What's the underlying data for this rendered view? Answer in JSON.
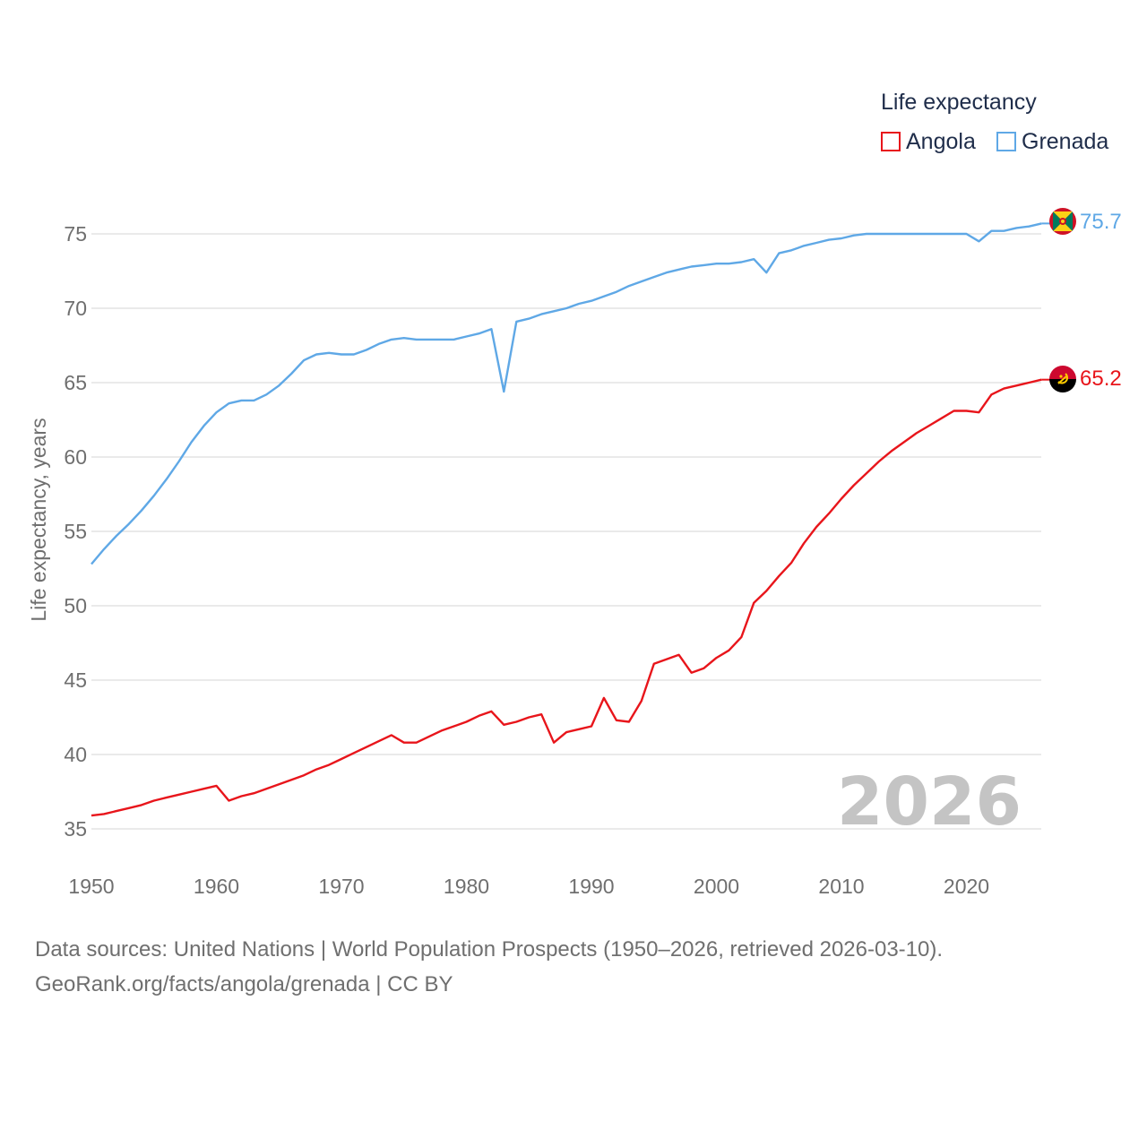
{
  "legend": {
    "title": "Life expectancy",
    "items": [
      {
        "label": "Angola",
        "color": "#e8151b"
      },
      {
        "label": "Grenada",
        "color": "#5fa8e6"
      }
    ]
  },
  "footer": {
    "line1": "Data sources: United Nations | World Population Prospects (1950–2026, retrieved 2026-03-10).",
    "line2": "GeoRank.org/facts/angola/grenada | CC BY"
  },
  "chart_data": {
    "type": "line",
    "title": "Life expectancy",
    "xlabel": "",
    "ylabel": "Life expectancy, years",
    "xlim": [
      1950,
      2026
    ],
    "ylim": [
      33,
      78
    ],
    "xticks": [
      "1950",
      "1960",
      "1970",
      "1980",
      "1990",
      "2000",
      "2010",
      "2020"
    ],
    "yticks": [
      "35",
      "40",
      "45",
      "50",
      "55",
      "60",
      "65",
      "70",
      "75"
    ],
    "year_label": "2026",
    "x": [
      1950,
      1951,
      1952,
      1953,
      1954,
      1955,
      1956,
      1957,
      1958,
      1959,
      1960,
      1961,
      1962,
      1963,
      1964,
      1965,
      1966,
      1967,
      1968,
      1969,
      1970,
      1971,
      1972,
      1973,
      1974,
      1975,
      1976,
      1977,
      1978,
      1979,
      1980,
      1981,
      1982,
      1983,
      1984,
      1985,
      1986,
      1987,
      1988,
      1989,
      1990,
      1991,
      1992,
      1993,
      1994,
      1995,
      1996,
      1997,
      1998,
      1999,
      2000,
      2001,
      2002,
      2003,
      2004,
      2005,
      2006,
      2007,
      2008,
      2009,
      2010,
      2011,
      2012,
      2013,
      2014,
      2015,
      2016,
      2017,
      2018,
      2019,
      2020,
      2021,
      2022,
      2023,
      2024,
      2025,
      2026
    ],
    "series": [
      {
        "name": "Angola",
        "color": "#e8151b",
        "end_label": "65.2",
        "flag": "angola-flag",
        "values": [
          35.9,
          36.0,
          36.2,
          36.4,
          36.6,
          36.9,
          37.1,
          37.3,
          37.5,
          37.7,
          37.9,
          36.9,
          37.2,
          37.4,
          37.7,
          38.0,
          38.3,
          38.6,
          39.0,
          39.3,
          39.7,
          40.1,
          40.5,
          40.9,
          41.3,
          40.8,
          40.8,
          41.2,
          41.6,
          41.9,
          42.2,
          42.6,
          42.9,
          42.0,
          42.2,
          42.5,
          42.7,
          40.8,
          41.5,
          41.7,
          41.9,
          43.8,
          42.3,
          42.2,
          43.6,
          46.1,
          46.4,
          46.7,
          45.5,
          45.8,
          46.5,
          47.0,
          47.9,
          50.2,
          51.0,
          52.0,
          52.9,
          54.2,
          55.3,
          56.2,
          57.2,
          58.1,
          58.9,
          59.7,
          60.4,
          61.0,
          61.6,
          62.1,
          62.6,
          63.1,
          63.1,
          63.0,
          64.2,
          64.6,
          64.8,
          65.0,
          65.2
        ]
      },
      {
        "name": "Grenada",
        "color": "#5fa8e6",
        "end_label": "75.7",
        "flag": "grenada-flag",
        "values": [
          52.8,
          53.8,
          54.7,
          55.5,
          56.4,
          57.4,
          58.5,
          59.7,
          61.0,
          62.1,
          63.0,
          63.6,
          63.8,
          63.8,
          64.2,
          64.8,
          65.6,
          66.5,
          66.9,
          67.0,
          66.9,
          66.9,
          67.2,
          67.6,
          67.9,
          68.0,
          67.9,
          67.9,
          67.9,
          67.9,
          68.1,
          68.3,
          68.6,
          64.4,
          69.1,
          69.3,
          69.6,
          69.8,
          70.0,
          70.3,
          70.5,
          70.8,
          71.1,
          71.5,
          71.8,
          72.1,
          72.4,
          72.6,
          72.8,
          72.9,
          73.0,
          73.0,
          73.1,
          73.3,
          72.4,
          73.7,
          73.9,
          74.2,
          74.4,
          74.6,
          74.7,
          74.9,
          75.0,
          75.0,
          75.0,
          75.0,
          75.0,
          75.0,
          75.0,
          75.0,
          75.0,
          74.5,
          75.2,
          75.2,
          75.4,
          75.5,
          75.7
        ]
      }
    ]
  }
}
